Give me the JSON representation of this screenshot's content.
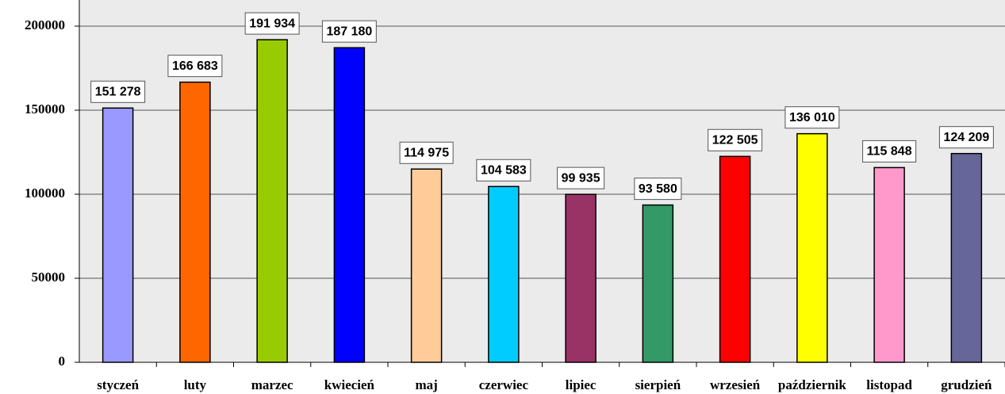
{
  "chart_data": {
    "type": "bar",
    "categories": [
      "styczeń",
      "luty",
      "marzec",
      "kwiecień",
      "maj",
      "czerwiec",
      "lipiec",
      "sierpień",
      "wrzesień",
      "październik",
      "listopad",
      "grudzień"
    ],
    "values": [
      151278,
      166683,
      191934,
      187180,
      114975,
      104583,
      99935,
      93580,
      122505,
      136010,
      115848,
      124209
    ],
    "value_labels": [
      "151 278",
      "166 683",
      "191 934",
      "187 180",
      "114 975",
      "104 583",
      "99 935",
      "93 580",
      "122 505",
      "136 010",
      "115 848",
      "124 209"
    ],
    "colors": [
      "#9999ff",
      "#ff6600",
      "#99cc00",
      "#0000ff",
      "#ffcc99",
      "#00ccff",
      "#993366",
      "#339966",
      "#ff0000",
      "#ffff00",
      "#ff99cc",
      "#666699"
    ],
    "ylim": [
      0,
      200000
    ],
    "yticks": [
      0,
      50000,
      100000,
      150000,
      200000
    ],
    "grid": true
  }
}
